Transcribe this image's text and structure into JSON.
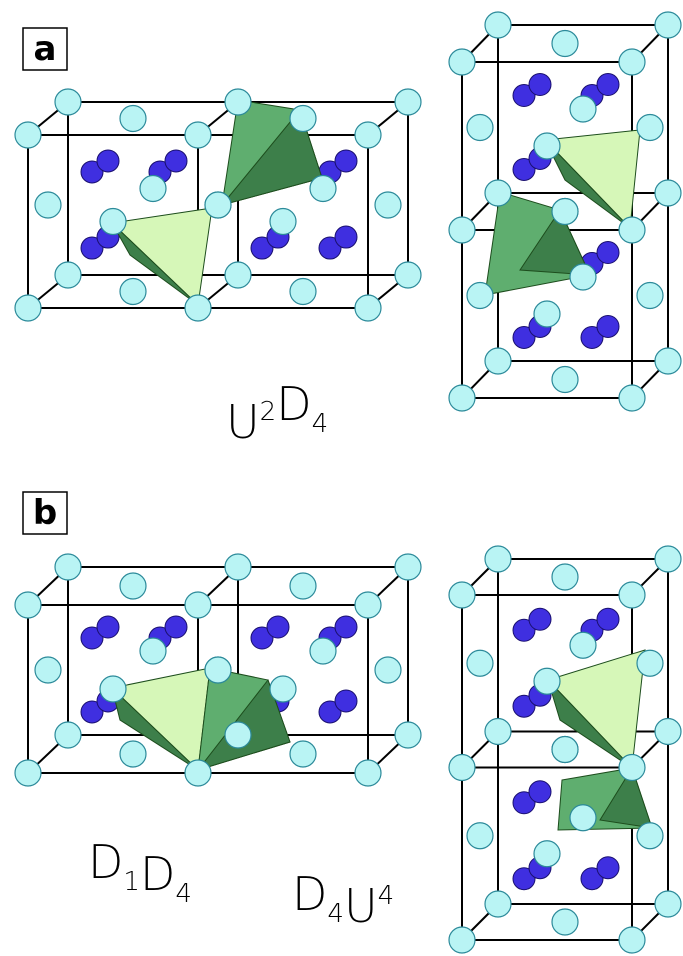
{
  "panels": [
    {
      "label": "a",
      "formulas": [
        [
          {
            "t": "U",
            "sup": "2"
          },
          {
            "t": "D",
            "sub": "4"
          }
        ]
      ]
    },
    {
      "label": "b",
      "formulas": [
        [
          {
            "t": "D",
            "sub": "1"
          },
          {
            "t": "D",
            "sub": "4"
          }
        ],
        [
          {
            "t": "D",
            "sub": "4"
          },
          {
            "t": "U",
            "sup": "4"
          }
        ]
      ]
    }
  ]
}
